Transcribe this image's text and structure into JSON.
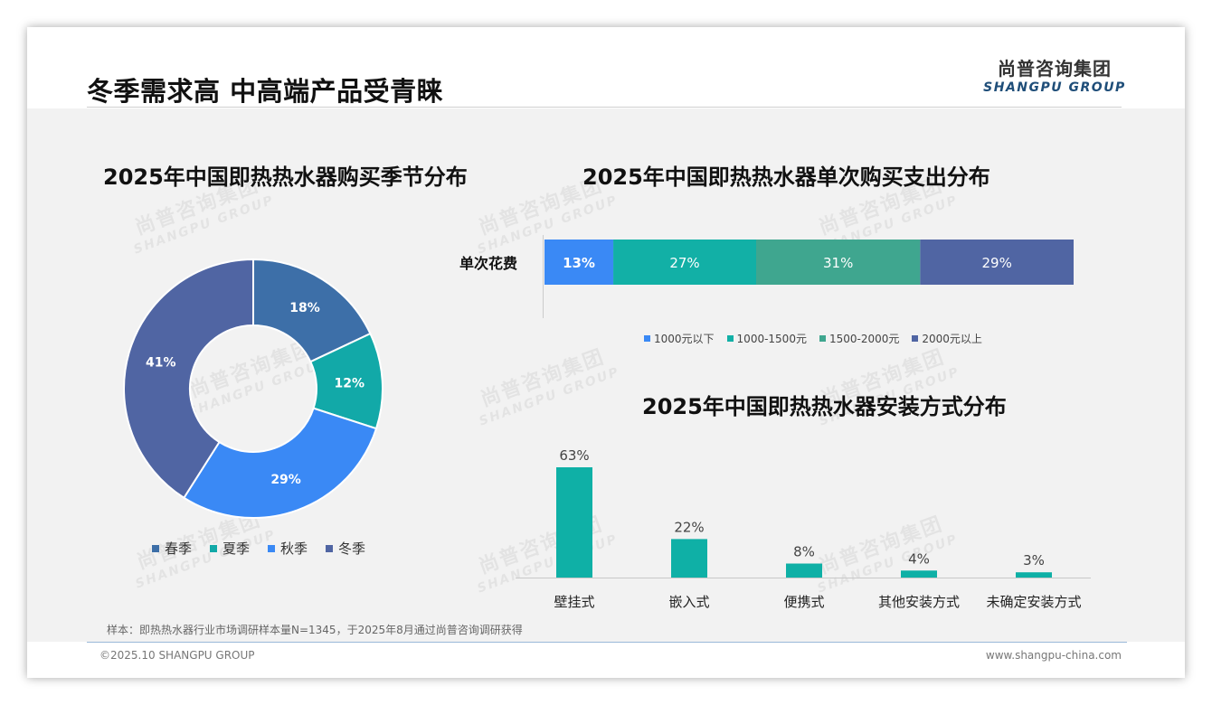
{
  "page": {
    "title": "冬季需求高 中高端产品受青睐",
    "logo_cn": "尚普咨询集团",
    "logo_en": "SHANGPU GROUP",
    "watermark_cn": "尚普咨询集团",
    "watermark_en": "SHANGPU GROUP",
    "footnote": "样本：即热热水器行业市场调研样本量N=1345，于2025年8月通过尚普咨询调研获得",
    "copyright": "©2025.10 SHANGPU GROUP",
    "website": "www.shangpu-china.com"
  },
  "chart_data": [
    {
      "type": "pie",
      "title": "2025年中国即热热水器购买季节分布",
      "categories": [
        "春季",
        "夏季",
        "秋季",
        "冬季"
      ],
      "values": [
        18,
        12,
        29,
        41
      ],
      "labels": [
        "18%",
        "12%",
        "29%",
        "41%"
      ],
      "colors": [
        "#3d6fa8",
        "#12a9a8",
        "#3a89f5",
        "#5065a3"
      ],
      "legend": "bottom"
    },
    {
      "type": "bar",
      "stacked": true,
      "orientation": "horizontal",
      "title": "2025年中国即热热水器单次购买支出分布",
      "categories": [
        "单次花费"
      ],
      "series": [
        {
          "name": "1000元以下",
          "values": [
            13
          ],
          "label": "13%",
          "color": "#3a89f5"
        },
        {
          "name": "1000-1500元",
          "values": [
            27
          ],
          "label": "27%",
          "color": "#12b0a6"
        },
        {
          "name": "1500-2000元",
          "values": [
            31
          ],
          "label": "31%",
          "color": "#3fa68f"
        },
        {
          "name": "2000元以上",
          "values": [
            29
          ],
          "label": "29%",
          "color": "#5065a3"
        }
      ],
      "legend": "bottom"
    },
    {
      "type": "bar",
      "title": "2025年中国即热热水器安装方式分布",
      "categories": [
        "壁挂式",
        "嵌入式",
        "便携式",
        "其他安装方式",
        "未确定安装方式"
      ],
      "values": [
        63,
        22,
        8,
        4,
        3
      ],
      "labels": [
        "63%",
        "22%",
        "8%",
        "4%",
        "3%"
      ],
      "color": "#0fb0a6",
      "ylim": [
        0,
        63
      ]
    }
  ]
}
